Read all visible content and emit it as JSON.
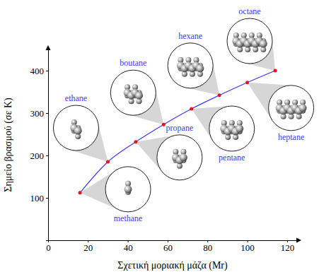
{
  "chart_data": {
    "type": "line",
    "x_label": "Σχετική μοριακή μάζα (Mr)",
    "y_label": "Σημείο βρασμού (σε K)",
    "x": [
      16,
      30,
      44,
      58,
      72,
      86,
      100,
      114
    ],
    "values": [
      112,
      185,
      232,
      273,
      310,
      342,
      372,
      400
    ],
    "labels": [
      "methane",
      "ethane",
      "propane",
      "boutane",
      "pentane",
      "hexane",
      "heptane",
      "octane"
    ],
    "color": "#3a3aff",
    "marker": "circle",
    "xlim": [
      0,
      125
    ],
    "ylim": [
      0,
      450
    ],
    "xticks": [
      0,
      20,
      40,
      60,
      80,
      100,
      120
    ],
    "yticks": [
      100,
      200,
      300,
      400
    ],
    "grid": false
  }
}
